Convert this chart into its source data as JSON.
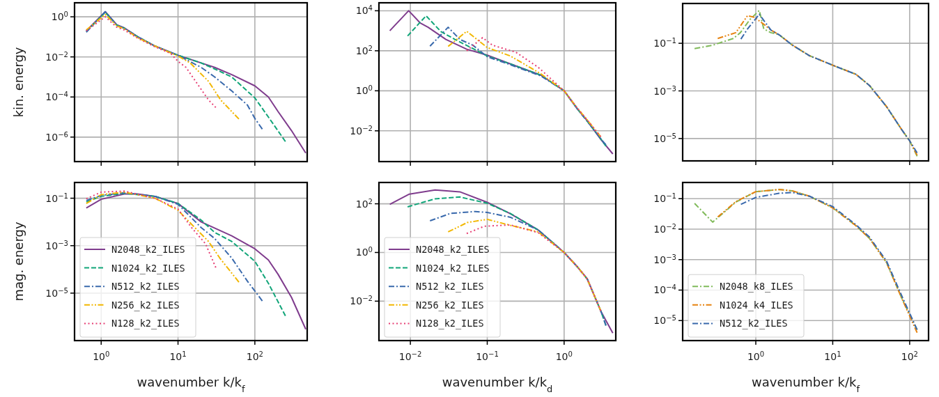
{
  "chart_data": [
    {
      "type": "line",
      "ylabel": "kin. energy",
      "log": "xy",
      "grid": true,
      "legend": false,
      "tick_labels": "y",
      "xlim": [
        0.45,
        480
      ],
      "ylim": [
        6e-08,
        5
      ],
      "xticks": [
        {
          "value": 1,
          "label": null
        },
        {
          "value": 10,
          "label": null
        },
        {
          "value": 100,
          "label": null
        }
      ],
      "yticks": [
        {
          "value": 1,
          "label": "10$^{0}$"
        },
        {
          "value": 0.01,
          "label": "10$^{−2}$"
        },
        {
          "value": 0.0001,
          "label": "10$^{−4}$"
        },
        {
          "value": 1e-06,
          "label": "10$^{−6}$"
        }
      ],
      "series": [
        {
          "color": "#7f3c8d",
          "line_style": "solid",
          "x": [
            0.64,
            1.13,
            1.6,
            2,
            3,
            5,
            10,
            20,
            30,
            50,
            100,
            150,
            200,
            300,
            460
          ],
          "values": [
            0.2,
            1.8,
            0.4,
            0.28,
            0.1,
            0.035,
            0.012,
            0.005,
            0.003,
            0.0013,
            0.00036,
            0.0001,
            1.9e-05,
            2.1e-06,
            1.6e-07
          ]
        },
        {
          "color": "#11a579",
          "line_style": "dashed",
          "x": [
            0.64,
            1.13,
            1.6,
            2,
            3,
            5,
            10,
            20,
            30,
            50,
            100,
            150,
            250
          ],
          "values": [
            0.18,
            1.7,
            0.38,
            0.27,
            0.1,
            0.035,
            0.012,
            0.005,
            0.0025,
            0.001,
            9e-05,
            1e-05,
            6e-07
          ]
        },
        {
          "color": "#3969ac",
          "line_style": "dashdot",
          "x": [
            0.64,
            1.13,
            1.6,
            2,
            3,
            5,
            10,
            20,
            30,
            50,
            80,
            100,
            125
          ],
          "values": [
            0.17,
            1.8,
            0.38,
            0.27,
            0.1,
            0.035,
            0.012,
            0.003,
            0.001,
            0.0002,
            4e-05,
            8.5e-06,
            2.5e-06
          ]
        },
        {
          "color": "#f2b701",
          "line_style": "dashdotdot",
          "x": [
            0.64,
            1.13,
            1.6,
            2,
            3,
            5,
            10,
            14.4,
            25,
            36,
            62
          ],
          "values": [
            0.22,
            1.3,
            0.35,
            0.25,
            0.09,
            0.035,
            0.011,
            0.005,
            0.0006,
            7e-05,
            8e-06
          ]
        },
        {
          "color": "#e73f74",
          "line_style": "dotted",
          "x": [
            0.64,
            1.13,
            1.6,
            2,
            3,
            5,
            8,
            10,
            12.7,
            17.8,
            25,
            31
          ],
          "values": [
            0.2,
            1.0,
            0.3,
            0.22,
            0.085,
            0.032,
            0.015,
            0.006,
            0.003,
            0.00046,
            7e-05,
            3e-05
          ]
        }
      ]
    },
    {
      "type": "line",
      "log": "xy",
      "grid": true,
      "legend": false,
      "tick_labels": "y",
      "xlim": [
        0.0039,
        4.7
      ],
      "ylim": [
        0.00029,
        25000
      ],
      "xticks": [
        {
          "value": 0.01,
          "label": null
        },
        {
          "value": 0.1,
          "label": null
        },
        {
          "value": 1,
          "label": null
        }
      ],
      "yticks": [
        {
          "value": 10000,
          "label": "10$^{4}$"
        },
        {
          "value": 100,
          "label": "10$^{2}$"
        },
        {
          "value": 1,
          "label": "10$^{0}$"
        },
        {
          "value": 0.01,
          "label": "10$^{−2}$"
        }
      ],
      "series": [
        {
          "color": "#7f3c8d",
          "line_style": "solid",
          "x": [
            0.0054,
            0.0095,
            0.0135,
            0.017,
            0.029,
            0.054,
            0.1,
            0.2,
            0.5,
            1,
            1.5,
            2,
            3,
            4.3
          ],
          "values": [
            1000,
            10000,
            2400,
            1500,
            370,
            120,
            60,
            22,
            6,
            1,
            0.12,
            0.032,
            0.0037,
            0.0007
          ]
        },
        {
          "color": "#11a579",
          "line_style": "dashed",
          "x": [
            0.0092,
            0.016,
            0.025,
            0.038,
            0.1,
            0.2,
            0.5,
            1,
            1.5,
            2,
            3,
            3.5
          ],
          "values": [
            550,
            5600,
            900,
            370,
            55,
            22,
            6,
            1,
            0.12,
            0.03,
            0.004,
            0.0017
          ]
        },
        {
          "color": "#3969ac",
          "line_style": "dashdot",
          "x": [
            0.018,
            0.031,
            0.044,
            0.065,
            0.1,
            0.2,
            0.5,
            1,
            1.5,
            2,
            3,
            3.5
          ],
          "values": [
            170,
            1500,
            370,
            190,
            50,
            20,
            5.5,
            1,
            0.12,
            0.03,
            0.004,
            0.002
          ]
        },
        {
          "color": "#f2b701",
          "line_style": "dashdotdot",
          "x": [
            0.031,
            0.054,
            0.1,
            0.2,
            0.5,
            1,
            1.5,
            2,
            3
          ],
          "values": [
            165,
            940,
            145,
            55,
            7,
            1,
            0.13,
            0.035,
            0.005
          ]
        },
        {
          "color": "#e73f74",
          "line_style": "dotted",
          "x": [
            0.054,
            0.087,
            0.117,
            0.235,
            0.46,
            1,
            1.5,
            2,
            3
          ],
          "values": [
            100,
            450,
            190,
            85,
            15,
            1,
            0.13,
            0.035,
            0.005
          ]
        }
      ]
    },
    {
      "type": "line",
      "log": "xy",
      "grid": true,
      "legend": false,
      "tick_labels": "y",
      "xlim": [
        0.112,
        176
      ],
      "ylim": [
        1.15e-06,
        4.7
      ],
      "xticks": [
        {
          "value": 1,
          "label": null
        },
        {
          "value": 10,
          "label": null
        },
        {
          "value": 100,
          "label": null
        }
      ],
      "yticks": [
        {
          "value": 0.1,
          "label": "10$^{−1}$"
        },
        {
          "value": 0.001,
          "label": "10$^{−3}$"
        },
        {
          "value": 1e-05,
          "label": "10$^{−5}$"
        }
      ],
      "series": [
        {
          "color": "#80ba5a",
          "line_style": "dashdot",
          "x": [
            0.16,
            0.275,
            0.51,
            0.63,
            0.84,
            1.11,
            1.27,
            1.57,
            2,
            3,
            5,
            10,
            20,
            30,
            50,
            80,
            100,
            125
          ],
          "values": [
            0.06,
            0.083,
            0.16,
            0.28,
            1.0,
            2.4,
            0.4,
            0.28,
            0.23,
            0.083,
            0.03,
            0.012,
            0.005,
            0.0017,
            0.00022,
            2.2e-05,
            8e-06,
            1.8e-06
          ]
        },
        {
          "color": "#e68310",
          "line_style": "dashdotdot",
          "x": [
            0.32,
            0.55,
            0.78,
            0.96,
            1.27,
            1.57,
            2,
            3,
            5,
            10,
            20,
            30,
            50,
            80,
            100,
            125
          ],
          "values": [
            0.16,
            0.28,
            1.45,
            1.23,
            0.63,
            0.36,
            0.23,
            0.083,
            0.03,
            0.012,
            0.005,
            0.0017,
            0.00022,
            2.2e-05,
            8e-06,
            2e-06
          ]
        },
        {
          "color": "#3969ac",
          "line_style": "dashdot",
          "x": [
            0.64,
            0.78,
            1.11,
            1.57,
            2,
            3,
            5,
            10,
            20,
            30,
            50,
            80,
            100,
            125
          ],
          "values": [
            0.15,
            0.4,
            1.65,
            0.36,
            0.23,
            0.083,
            0.03,
            0.012,
            0.005,
            0.0017,
            0.00022,
            2.2e-05,
            8e-06,
            2.5e-06
          ]
        }
      ]
    },
    {
      "type": "line",
      "ylabel": "mag. energy",
      "xlabel": "wavenumber k/k$_{f}$",
      "log": "xy",
      "grid": true,
      "legend": "bottom left",
      "xlim": [
        0.45,
        480
      ],
      "ylim": [
        1e-07,
        0.46
      ],
      "xticks": [
        {
          "value": 1,
          "label": "10$^{0}$"
        },
        {
          "value": 10,
          "label": "10$^{1}$"
        },
        {
          "value": 100,
          "label": "10$^{2}$"
        }
      ],
      "yticks": [
        {
          "value": 0.1,
          "label": "10$^{−1}$"
        },
        {
          "value": 0.001,
          "label": "10$^{−3}$"
        },
        {
          "value": 1e-05,
          "label": "10$^{−5}$"
        }
      ],
      "series": [
        {
          "name": "N2048_k2_ILES",
          "color": "#7f3c8d",
          "line_style": "solid",
          "x": [
            0.64,
            1,
            2,
            3,
            5,
            10,
            20,
            50,
            100,
            150,
            200,
            300,
            460
          ],
          "values": [
            0.039,
            0.09,
            0.15,
            0.15,
            0.12,
            0.06,
            0.01,
            0.0026,
            0.00074,
            0.00025,
            6.3e-05,
            6.6e-06,
            3e-07
          ]
        },
        {
          "name": "N1024_k2_ILES",
          "color": "#11a579",
          "line_style": "dashed",
          "x": [
            0.64,
            1,
            2,
            5,
            10,
            20,
            30,
            50,
            100,
            150,
            250
          ],
          "values": [
            0.07,
            0.12,
            0.16,
            0.12,
            0.06,
            0.012,
            0.0036,
            0.0015,
            0.00022,
            2.6e-05,
            1.1e-06
          ]
        },
        {
          "name": "N512_k2_ILES",
          "color": "#3969ac",
          "line_style": "dashdot",
          "x": [
            0.64,
            1,
            2,
            5,
            10,
            20,
            30,
            50,
            80,
            125
          ],
          "values": [
            0.08,
            0.13,
            0.17,
            0.12,
            0.055,
            0.0058,
            0.002,
            0.0003,
            3.2e-05,
            4.7e-06
          ]
        },
        {
          "name": "N256_k2_ILES",
          "color": "#f2b701",
          "line_style": "dashdotdot",
          "x": [
            0.64,
            1,
            2,
            5,
            10,
            15,
            25,
            35,
            62
          ],
          "values": [
            0.06,
            0.14,
            0.18,
            0.1,
            0.031,
            0.008,
            0.0015,
            0.0003,
            2.9e-05
          ]
        },
        {
          "name": "N128_k2_ILES",
          "color": "#e73f74",
          "line_style": "dotted",
          "x": [
            0.64,
            1,
            2,
            5,
            10,
            15,
            22.8,
            31
          ],
          "values": [
            0.095,
            0.18,
            0.2,
            0.1,
            0.035,
            0.0058,
            0.0012,
            0.00012
          ]
        }
      ]
    },
    {
      "type": "line",
      "xlabel": "wavenumber k/k$_{d}$",
      "log": "xy",
      "grid": true,
      "legend": "bottom left",
      "xlim": [
        0.0039,
        4.7
      ],
      "ylim": [
        0.00024,
        750
      ],
      "xticks": [
        {
          "value": 0.01,
          "label": "10$^{−2}$"
        },
        {
          "value": 0.1,
          "label": "10$^{−1}$"
        },
        {
          "value": 1,
          "label": "10$^{0}$"
        }
      ],
      "yticks": [
        {
          "value": 100,
          "label": "10$^{2}$"
        },
        {
          "value": 1,
          "label": "10$^{0}$"
        },
        {
          "value": 0.01,
          "label": "10$^{−2}$"
        }
      ],
      "series": [
        {
          "name": "N2048_k2_ILES",
          "color": "#7f3c8d",
          "line_style": "solid",
          "x": [
            0.0054,
            0.0097,
            0.021,
            0.044,
            0.1,
            0.2,
            0.46,
            1,
            1.5,
            2,
            3,
            4.3
          ],
          "values": [
            95,
            250,
            370,
            310,
            115,
            39,
            8.4,
            1,
            0.25,
            0.084,
            0.0039,
            0.00049
          ]
        },
        {
          "name": "N1024_k2_ILES",
          "color": "#11a579",
          "line_style": "dashed",
          "x": [
            0.0092,
            0.021,
            0.044,
            0.1,
            0.2,
            0.46,
            1,
            1.5,
            2,
            3,
            3.5
          ],
          "values": [
            75,
            160,
            190,
            105,
            40,
            8.4,
            1,
            0.25,
            0.08,
            0.004,
            0.001
          ]
        },
        {
          "name": "N512_k2_ILES",
          "color": "#3969ac",
          "line_style": "dashdot",
          "x": [
            0.018,
            0.033,
            0.07,
            0.1,
            0.2,
            0.46,
            1,
            1.5,
            2,
            3,
            3.5
          ],
          "values": [
            20,
            40,
            48,
            44,
            28,
            8.4,
            1,
            0.25,
            0.08,
            0.004,
            0.001
          ]
        },
        {
          "name": "N256_k2_ILES",
          "color": "#f2b701",
          "line_style": "dashdotdot",
          "x": [
            0.031,
            0.055,
            0.1,
            0.2,
            0.46,
            1,
            1.5,
            2,
            3
          ],
          "values": [
            7,
            17,
            23,
            13,
            7,
            1,
            0.25,
            0.08,
            0.004
          ]
        },
        {
          "name": "N128_k2_ILES",
          "color": "#e73f74",
          "line_style": "dotted",
          "x": [
            0.054,
            0.092,
            0.2,
            0.46,
            1,
            1.5,
            2,
            3
          ],
          "values": [
            6,
            12,
            13.5,
            6.5,
            1,
            0.25,
            0.08,
            0.004
          ]
        }
      ]
    },
    {
      "type": "line",
      "xlabel": "wavenumber k/k$_{f}$",
      "log": "xy",
      "grid": true,
      "legend": "bottom left",
      "xlim": [
        0.112,
        176
      ],
      "ylim": [
        2.2e-06,
        0.34
      ],
      "xticks": [
        {
          "value": 1,
          "label": "10$^{0}$"
        },
        {
          "value": 10,
          "label": "10$^{1}$"
        },
        {
          "value": 100,
          "label": "10$^{2}$"
        }
      ],
      "yticks": [
        {
          "value": 0.1,
          "label": "10$^{−1}$"
        },
        {
          "value": 0.01,
          "label": "10$^{−2}$"
        },
        {
          "value": 0.001,
          "label": "10$^{−3}$"
        },
        {
          "value": 0.0001,
          "label": "10$^{−4}$"
        },
        {
          "value": 1e-05,
          "label": "10$^{−5}$"
        }
      ],
      "series": [
        {
          "name": "N2048_k8_ILES",
          "color": "#80ba5a",
          "line_style": "dashdot",
          "x": [
            0.16,
            0.275,
            0.55,
            1,
            2,
            3,
            5,
            10,
            20,
            30,
            50,
            80,
            125
          ],
          "values": [
            0.07,
            0.017,
            0.077,
            0.17,
            0.2,
            0.18,
            0.12,
            0.05,
            0.013,
            0.005,
            0.0008,
            5e-05,
            5e-06
          ]
        },
        {
          "name": "N1024_k4_ILES",
          "color": "#e68310",
          "line_style": "dashdotdot",
          "x": [
            0.32,
            0.55,
            1,
            2,
            3,
            5,
            10,
            20,
            30,
            50,
            80,
            125
          ],
          "values": [
            0.025,
            0.08,
            0.17,
            0.2,
            0.18,
            0.12,
            0.05,
            0.013,
            0.005,
            0.0008,
            5e-05,
            4e-06
          ]
        },
        {
          "name": "N512_k2_ILES",
          "color": "#3969ac",
          "line_style": "dashdot",
          "x": [
            0.64,
            1,
            2,
            3,
            5,
            10,
            20,
            30,
            50,
            80,
            125
          ],
          "values": [
            0.065,
            0.11,
            0.15,
            0.16,
            0.12,
            0.055,
            0.014,
            0.0055,
            0.0009,
            6e-05,
            5e-06
          ]
        }
      ]
    }
  ]
}
